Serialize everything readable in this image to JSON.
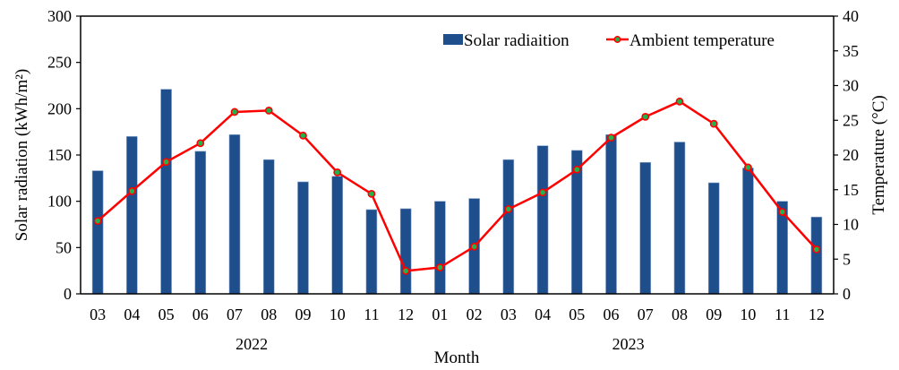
{
  "chart_data": {
    "type": "bar",
    "combo": "bar + line (dual y-axis)",
    "title": "",
    "xlabel": "Month",
    "ylabel": "Solar radiation (kWh/m²)",
    "ylabel_right": "Temperature (°C)",
    "ylim": [
      0,
      300
    ],
    "ylim_right": [
      0,
      40
    ],
    "yticks": [
      0,
      50,
      100,
      150,
      200,
      250,
      300
    ],
    "yticks_right": [
      0,
      5,
      10,
      15,
      20,
      25,
      30,
      35,
      40
    ],
    "grid": false,
    "legend_position": "top-right",
    "categories": [
      "03",
      "04",
      "05",
      "06",
      "07",
      "08",
      "09",
      "10",
      "11",
      "12",
      "01",
      "02",
      "03",
      "04",
      "05",
      "06",
      "07",
      "08",
      "09",
      "10",
      "11",
      "12"
    ],
    "year_groups": [
      {
        "label": "2022",
        "start_index": 0,
        "end_index": 9
      },
      {
        "label": "2023",
        "start_index": 10,
        "end_index": 21
      }
    ],
    "series": [
      {
        "name": "Solar radiaition",
        "type": "bar",
        "axis": "left",
        "color": "#1f4e8c",
        "values": [
          133,
          170,
          221,
          154,
          172,
          145,
          121,
          127,
          91,
          92,
          100,
          103,
          145,
          160,
          155,
          172,
          142,
          164,
          120,
          136,
          100,
          83
        ]
      },
      {
        "name": "Ambient temperature",
        "type": "line",
        "axis": "right",
        "color": "#ff0000",
        "marker_color": "#22b14c",
        "values": [
          10.5,
          14.8,
          19.0,
          21.7,
          26.2,
          26.4,
          22.8,
          17.5,
          14.4,
          3.3,
          3.8,
          6.8,
          12.2,
          14.6,
          17.9,
          22.5,
          25.5,
          27.7,
          24.5,
          18.2,
          11.8,
          6.4
        ]
      }
    ]
  }
}
